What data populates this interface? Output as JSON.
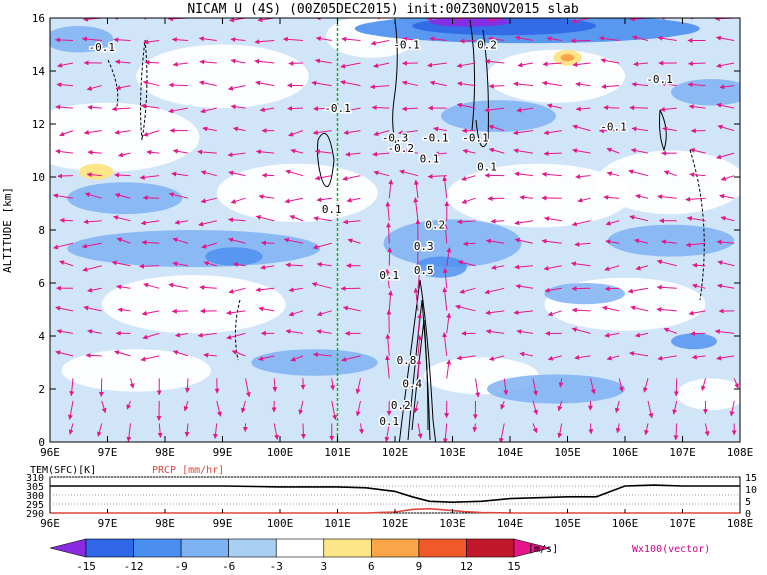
{
  "chart_data": [
    {
      "type": "heatmap",
      "title": "NICAM U (4S) (00Z05DEC2015) init:00Z30NOV2015 slab",
      "ylabel": "ALTITUDE [km]",
      "x_ticks": [
        "96E",
        "97E",
        "98E",
        "99E",
        "100E",
        "101E",
        "102E",
        "103E",
        "104E",
        "105E",
        "106E",
        "107E",
        "108E"
      ],
      "y_ticks": [
        0,
        2,
        4,
        6,
        8,
        10,
        12,
        14,
        16
      ],
      "xlim": [
        96,
        108
      ],
      "ylim": [
        0,
        16
      ],
      "marker_line_lon": 101,
      "vector_label": "Wx100(vector)",
      "contour_labels": [
        {
          "text": "-0.1",
          "lon": 96.9,
          "z": 14.9
        },
        {
          "text": "-0.1",
          "lon": 101.0,
          "z": 12.6
        },
        {
          "text": "-0.1",
          "lon": 102.2,
          "z": 15.0
        },
        {
          "text": "-0.3",
          "lon": 102.0,
          "z": 11.5
        },
        {
          "text": "-0.2",
          "lon": 102.1,
          "z": 11.1
        },
        {
          "text": "-0.1",
          "lon": 102.7,
          "z": 11.5
        },
        {
          "text": "0.1",
          "lon": 102.6,
          "z": 10.7
        },
        {
          "text": "-0.1",
          "lon": 103.4,
          "z": 11.5
        },
        {
          "text": "0.1",
          "lon": 103.6,
          "z": 10.4
        },
        {
          "text": "0.2",
          "lon": 103.6,
          "z": 15.0
        },
        {
          "text": "-0.1",
          "lon": 106.6,
          "z": 13.7
        },
        {
          "text": "-0.1",
          "lon": 105.8,
          "z": 11.9
        },
        {
          "text": "0.1",
          "lon": 100.9,
          "z": 8.8
        },
        {
          "text": "0.2",
          "lon": 102.7,
          "z": 8.2
        },
        {
          "text": "0.3",
          "lon": 102.5,
          "z": 7.4
        },
        {
          "text": "0.5",
          "lon": 102.5,
          "z": 6.5
        },
        {
          "text": "0.1",
          "lon": 101.9,
          "z": 6.3
        },
        {
          "text": "0.8",
          "lon": 102.2,
          "z": 3.1
        },
        {
          "text": "0.4",
          "lon": 102.3,
          "z": 2.2
        },
        {
          "text": "0.2",
          "lon": 102.1,
          "z": 1.4
        },
        {
          "text": "0.1",
          "lon": 101.9,
          "z": 0.8
        }
      ],
      "colorbar": {
        "ticks": [
          -15,
          -12,
          -9,
          -6,
          -3,
          3,
          6,
          9,
          12,
          15
        ],
        "unit": "[m/s]",
        "colors": [
          "#8a2be2",
          "#2f67e6",
          "#4a8ff0",
          "#7fb2f2",
          "#a9d0f2",
          "#ffffff",
          "#fde68a",
          "#f9a64a",
          "#f05a2a",
          "#c0182a",
          "#e6168a"
        ]
      }
    },
    {
      "type": "line",
      "left_label": "TEM(SFC)[K]",
      "right_label": "PRCP [mm/hr]",
      "x_ticks": [
        "96E",
        "97E",
        "98E",
        "99E",
        "100E",
        "101E",
        "102E",
        "103E",
        "104E",
        "105E",
        "106E",
        "107E",
        "108E"
      ],
      "y_left_ticks": [
        290,
        295,
        300,
        305,
        310
      ],
      "y_right_ticks": [
        0,
        5,
        10,
        15
      ],
      "series": [
        {
          "color": "#000000",
          "x": [
            96,
            97,
            98,
            99,
            100,
            100.5,
            101,
            101.5,
            102,
            102.3,
            102.6,
            103,
            103.5,
            104,
            104.5,
            105,
            105.5,
            106,
            106.5,
            107,
            108
          ],
          "values": [
            305,
            305,
            305,
            305,
            304.5,
            304.5,
            304.5,
            304,
            302,
            299,
            296.5,
            296,
            296.5,
            298,
            298.5,
            299,
            299,
            305,
            305.5,
            305,
            305
          ]
        },
        {
          "color": "#e0453a",
          "x": [
            96,
            101.5,
            102,
            102.3,
            102.6,
            102.9,
            103.2,
            103.5,
            104,
            108
          ],
          "values": [
            0,
            0,
            0.4,
            1.5,
            1.8,
            1.2,
            0.6,
            0.2,
            0,
            0
          ]
        }
      ]
    }
  ]
}
